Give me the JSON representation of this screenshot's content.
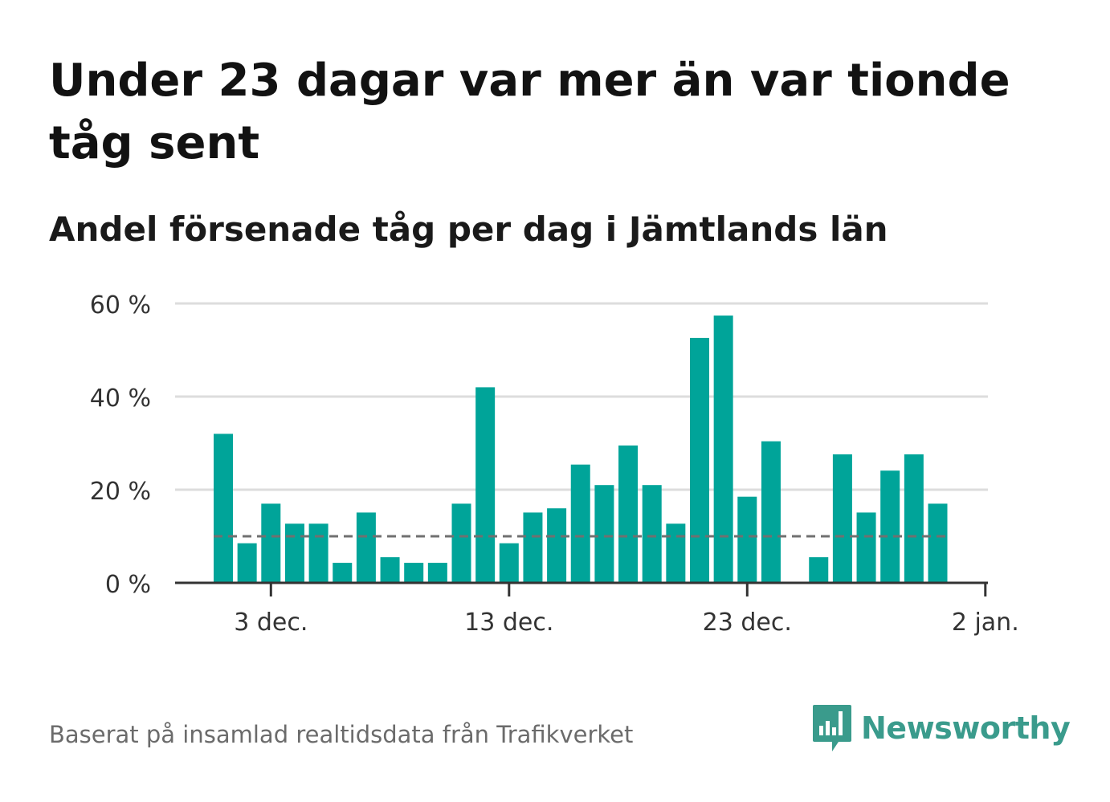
{
  "title": "Under 23 dagar var mer än var tionde tåg sent",
  "subtitle": "Andel försenade tåg per dag i Jämtlands län",
  "footer": "Baserat på insamlad realtidsdata från Trafikverket",
  "brand": {
    "name": "Newsworthy",
    "icon": "bar-chart-speech-bubble-icon",
    "color": "#3a9b8c"
  },
  "colors": {
    "bar": "#00a499",
    "grid": "#dddddd",
    "axis": "#333333",
    "reference_line": "#707070"
  },
  "chart_data": {
    "type": "bar",
    "title": "",
    "xlabel": "",
    "ylabel": "",
    "x": [
      "1 dec.",
      "2 dec.",
      "3 dec.",
      "4 dec.",
      "5 dec.",
      "6 dec.",
      "7 dec.",
      "8 dec.",
      "9 dec.",
      "10 dec.",
      "11 dec.",
      "12 dec.",
      "13 dec.",
      "14 dec.",
      "15 dec.",
      "16 dec.",
      "17 dec.",
      "18 dec.",
      "19 dec.",
      "20 dec.",
      "21 dec.",
      "22 dec.",
      "23 dec.",
      "24 dec.",
      "25 dec.",
      "26 dec.",
      "27 dec.",
      "28 dec.",
      "29 dec.",
      "30 dec.",
      "31 dec."
    ],
    "values": [
      32,
      8.5,
      17,
      12.7,
      12.7,
      4.3,
      15.1,
      5.5,
      4.3,
      4.3,
      17,
      42,
      8.5,
      15.1,
      16,
      25.4,
      21,
      29.5,
      21,
      12.7,
      52.6,
      57.4,
      18.5,
      30.4,
      null,
      5.5,
      27.6,
      15.1,
      24.1,
      27.6,
      17
    ],
    "reference_line": {
      "value": 10,
      "style": "dashed"
    },
    "ylim": [
      0,
      60
    ],
    "yticks": [
      0,
      20,
      40,
      60
    ],
    "ytick_labels": [
      "0 %",
      "20 %",
      "40 %",
      "60 %"
    ],
    "xticks": [
      "3 dec.",
      "13 dec.",
      "23 dec.",
      "2 jan."
    ],
    "xtick_positions": [
      2,
      12,
      22,
      32
    ],
    "grid": true
  }
}
